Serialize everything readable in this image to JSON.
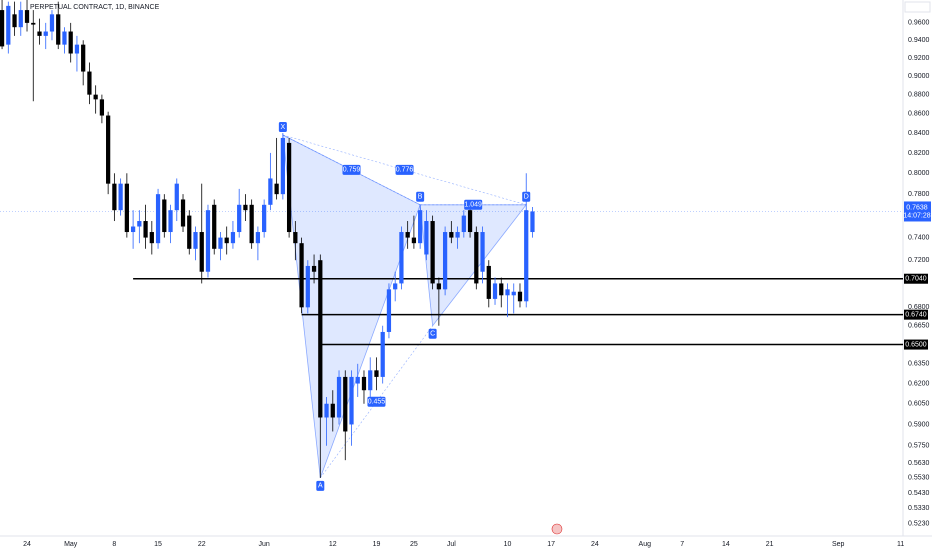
{
  "chart_data": {
    "type": "candlestick",
    "title": "PERPETUAL CONTRACT, 1D, BINANCE",
    "x": [
      -4,
      -3,
      -2,
      -1,
      0,
      1,
      2,
      3,
      4,
      5,
      6,
      7,
      8,
      9,
      10,
      11,
      12,
      13,
      14,
      15,
      16,
      17,
      18,
      19,
      20,
      21,
      22,
      23,
      24,
      25,
      26,
      27,
      28,
      29,
      30,
      31,
      32,
      33,
      34,
      35,
      36,
      37,
      38,
      39,
      40,
      41,
      42,
      43,
      44,
      45,
      46,
      47,
      48,
      49,
      50,
      51,
      52,
      53,
      54,
      55,
      56,
      57,
      58,
      59,
      60,
      61,
      62,
      63,
      64,
      65,
      66,
      67,
      68,
      69,
      70,
      71,
      72,
      73,
      74,
      75,
      76,
      77,
      78,
      79,
      80,
      81
    ],
    "open": [
      0.975,
      0.935,
      0.97,
      0.955,
      0.975,
      0.96,
      0.95,
      0.945,
      0.95,
      0.97,
      0.935,
      0.95,
      0.925,
      0.935,
      0.905,
      0.88,
      0.875,
      0.858,
      0.79,
      0.765,
      0.79,
      0.745,
      0.75,
      0.755,
      0.745,
      0.735,
      0.775,
      0.745,
      0.765,
      0.775,
      0.76,
      0.73,
      0.745,
      0.71,
      0.77,
      0.73,
      0.74,
      0.735,
      0.745,
      0.77,
      0.77,
      0.735,
      0.745,
      0.77,
      0.79,
      0.78,
      0.83,
      0.745,
      0.735,
      0.68,
      0.715,
      0.72,
      0.595,
      0.605,
      0.595,
      0.625,
      0.59,
      0.62,
      0.625,
      0.615,
      0.63,
      0.625,
      0.66,
      0.695,
      0.7,
      0.745,
      0.74,
      0.735,
      0.725,
      0.755,
      0.7,
      0.695,
      0.745,
      0.74,
      0.745,
      0.765,
      0.745,
      0.71,
      0.715,
      0.687,
      0.7,
      0.69,
      0.69,
      0.693,
      0.685,
      0.745
    ],
    "high": [
      0.99,
      0.985,
      0.985,
      0.985,
      0.99,
      0.975,
      0.965,
      0.96,
      0.975,
      0.985,
      0.955,
      0.96,
      0.945,
      0.94,
      0.915,
      0.89,
      0.88,
      0.862,
      0.8,
      0.795,
      0.8,
      0.765,
      0.765,
      0.77,
      0.755,
      0.785,
      0.78,
      0.77,
      0.795,
      0.78,
      0.765,
      0.75,
      0.79,
      0.77,
      0.775,
      0.745,
      0.75,
      0.755,
      0.785,
      0.78,
      0.775,
      0.75,
      0.775,
      0.82,
      0.835,
      0.84,
      0.835,
      0.755,
      0.74,
      0.72,
      0.725,
      0.725,
      0.61,
      0.615,
      0.63,
      0.63,
      0.63,
      0.635,
      0.63,
      0.64,
      0.64,
      0.665,
      0.7,
      0.71,
      0.75,
      0.755,
      0.76,
      0.77,
      0.765,
      0.76,
      0.705,
      0.75,
      0.755,
      0.75,
      0.765,
      0.77,
      0.75,
      0.75,
      0.72,
      0.705,
      0.705,
      0.7,
      0.7,
      0.7,
      0.8,
      0.768
    ],
    "low": [
      0.93,
      0.925,
      0.945,
      0.945,
      0.95,
      0.873,
      0.935,
      0.93,
      0.94,
      0.93,
      0.925,
      0.915,
      0.905,
      0.89,
      0.87,
      0.86,
      0.85,
      0.78,
      0.755,
      0.76,
      0.74,
      0.73,
      0.735,
      0.73,
      0.725,
      0.73,
      0.74,
      0.735,
      0.755,
      0.745,
      0.725,
      0.72,
      0.7,
      0.705,
      0.725,
      0.72,
      0.725,
      0.73,
      0.74,
      0.755,
      0.73,
      0.72,
      0.74,
      0.765,
      0.775,
      0.775,
      0.74,
      0.72,
      0.675,
      0.675,
      0.7,
      0.553,
      0.575,
      0.585,
      0.59,
      0.565,
      0.575,
      0.61,
      0.605,
      0.61,
      0.615,
      0.62,
      0.655,
      0.685,
      0.695,
      0.73,
      0.73,
      0.73,
      0.72,
      0.695,
      0.665,
      0.69,
      0.735,
      0.73,
      0.74,
      0.74,
      0.695,
      0.7,
      0.68,
      0.682,
      0.68,
      0.672,
      0.675,
      0.68,
      0.68,
      0.74
    ],
    "close": [
      0.933,
      0.98,
      0.955,
      0.975,
      0.96,
      0.958,
      0.945,
      0.95,
      0.97,
      0.935,
      0.95,
      0.925,
      0.935,
      0.905,
      0.88,
      0.875,
      0.858,
      0.79,
      0.765,
      0.79,
      0.745,
      0.75,
      0.755,
      0.74,
      0.735,
      0.78,
      0.745,
      0.765,
      0.79,
      0.75,
      0.73,
      0.745,
      0.71,
      0.765,
      0.73,
      0.74,
      0.735,
      0.745,
      0.77,
      0.765,
      0.735,
      0.745,
      0.77,
      0.795,
      0.78,
      0.835,
      0.745,
      0.735,
      0.68,
      0.715,
      0.71,
      0.595,
      0.605,
      0.595,
      0.625,
      0.585,
      0.625,
      0.625,
      0.615,
      0.63,
      0.625,
      0.66,
      0.695,
      0.7,
      0.745,
      0.74,
      0.735,
      0.765,
      0.755,
      0.7,
      0.695,
      0.745,
      0.74,
      0.745,
      0.76,
      0.745,
      0.7,
      0.745,
      0.687,
      0.7,
      0.69,
      0.695,
      0.693,
      0.685,
      0.765,
      0.7638
    ],
    "up_color": "#2962ff",
    "down_color": "#000000",
    "xlim": [
      -4.33,
      140.38
    ],
    "xticks": [
      {
        "value": 0,
        "label": "24"
      },
      {
        "value": 7,
        "label": "May"
      },
      {
        "value": 14,
        "label": "8"
      },
      {
        "value": 21,
        "label": "15"
      },
      {
        "value": 28,
        "label": "22"
      },
      {
        "value": 38,
        "label": "Jun"
      },
      {
        "value": 49,
        "label": "12"
      },
      {
        "value": 56,
        "label": "19"
      },
      {
        "value": 62,
        "label": "25"
      },
      {
        "value": 68,
        "label": "Jul"
      },
      {
        "value": 77,
        "label": "10"
      },
      {
        "value": 84,
        "label": "17"
      },
      {
        "value": 91,
        "label": "24"
      },
      {
        "value": 99,
        "label": "Aug"
      },
      {
        "value": 105,
        "label": "7"
      },
      {
        "value": 112,
        "label": "14"
      },
      {
        "value": 119,
        "label": "21"
      },
      {
        "value": 130,
        "label": "Sep"
      },
      {
        "value": 140,
        "label": "11"
      }
    ],
    "ylim": [
      0.516,
      0.987
    ],
    "log_scale": true,
    "grid": false,
    "yticks": [
      {
        "value": 0.96,
        "label": "0.9600"
      },
      {
        "value": 0.94,
        "label": "0.9400"
      },
      {
        "value": 0.92,
        "label": "0.9200"
      },
      {
        "value": 0.9,
        "label": "0.9000"
      },
      {
        "value": 0.88,
        "label": "0.8800"
      },
      {
        "value": 0.86,
        "label": "0.8600"
      },
      {
        "value": 0.84,
        "label": "0.8400"
      },
      {
        "value": 0.82,
        "label": "0.8200"
      },
      {
        "value": 0.8,
        "label": "0.8000"
      },
      {
        "value": 0.78,
        "label": "0.7800"
      },
      {
        "value": 0.74,
        "label": "0.7400"
      },
      {
        "value": 0.72,
        "label": "0.7200"
      },
      {
        "value": 0.68,
        "label": "0.6800"
      },
      {
        "value": 0.665,
        "label": "0.6650"
      },
      {
        "value": 0.635,
        "label": "0.6350"
      },
      {
        "value": 0.62,
        "label": "0.6200"
      },
      {
        "value": 0.605,
        "label": "0.6050"
      },
      {
        "value": 0.59,
        "label": "0.5900"
      },
      {
        "value": 0.575,
        "label": "0.5750"
      },
      {
        "value": 0.563,
        "label": "0.5630"
      },
      {
        "value": 0.553,
        "label": "0.5530"
      },
      {
        "value": 0.543,
        "label": "0.5430"
      },
      {
        "value": 0.533,
        "label": "0.5330"
      },
      {
        "value": 0.523,
        "label": "0.5230"
      }
    ],
    "levels": [
      {
        "value": 0.704,
        "label": "0.7040",
        "from": 17
      },
      {
        "value": 0.674,
        "label": "0.6740",
        "from": 44
      },
      {
        "value": 0.65,
        "label": "0.6500",
        "from": 47
      }
    ],
    "last_price": {
      "value": 0.7638,
      "label": "0.7638",
      "countdown": "14:07:28",
      "color": "#2962ff"
    },
    "pattern": {
      "color": "#2962ff",
      "points": [
        {
          "label": "X",
          "x": 41,
          "y": 0.838
        },
        {
          "label": "A",
          "x": 47,
          "y": 0.553
        },
        {
          "label": "B",
          "x": 63,
          "y": 0.77
        },
        {
          "label": "C",
          "x": 65,
          "y": 0.665
        },
        {
          "label": "D",
          "x": 80,
          "y": 0.77
        }
      ],
      "ratios": [
        {
          "label": "0.759"
        },
        {
          "label": "0.776"
        },
        {
          "label": "0.455"
        },
        {
          "label": "1.049"
        }
      ]
    }
  }
}
